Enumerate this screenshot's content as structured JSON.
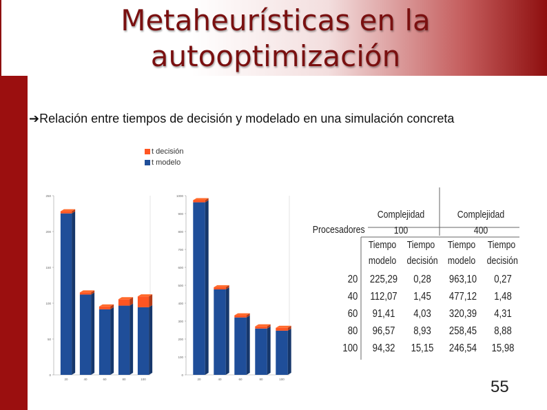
{
  "slide": {
    "title_line1": "Metaheurísticas en la",
    "title_line2": "autooptimización",
    "bullet": "Relación entre tiempos de decisión y modelado en una simulación concreta",
    "page_number": "55"
  },
  "legend": {
    "items": [
      {
        "label": "t decisión",
        "color": "#ff5522"
      },
      {
        "label": "t modelo",
        "color": "#1f4e99"
      }
    ]
  },
  "chart_data": [
    {
      "type": "bar",
      "stacked": true,
      "categories": [
        "20",
        "40",
        "60",
        "80",
        "100"
      ],
      "ylim": [
        0,
        250
      ],
      "series": [
        {
          "name": "t modelo",
          "values": [
            225.29,
            112.07,
            91.41,
            96.57,
            94.32
          ],
          "color": "#1f4e99"
        },
        {
          "name": "t decisión",
          "values": [
            0.28,
            1.45,
            4.03,
            8.93,
            15.15
          ],
          "color": "#ff5522"
        }
      ]
    },
    {
      "type": "bar",
      "stacked": true,
      "categories": [
        "20",
        "40",
        "60",
        "80",
        "100"
      ],
      "ylim": [
        0,
        1000
      ],
      "series": [
        {
          "name": "t modelo",
          "values": [
            963.1,
            477.12,
            320.39,
            258.45,
            246.54
          ],
          "color": "#1f4e99"
        },
        {
          "name": "t decisión",
          "values": [
            0.27,
            1.48,
            4.31,
            8.88,
            15.98
          ],
          "color": "#ff5522"
        }
      ]
    },
    {
      "type": "table",
      "headers": {
        "group1": "Complejidad 100",
        "group2": "Complejidad 400",
        "row_header": "Procesadores",
        "sub_a": [
          "Tiempo",
          "modelo"
        ],
        "sub_b": [
          "Tiempo",
          "decisión"
        ]
      },
      "rows": [
        [
          "20",
          "225,29",
          "0,28",
          "963,10",
          "0,27"
        ],
        [
          "40",
          "112,07",
          "1,45",
          "477,12",
          "1,48"
        ],
        [
          "60",
          "91,41",
          "4,03",
          "320,39",
          "4,31"
        ],
        [
          "80",
          "96,57",
          "8,93",
          "258,45",
          "8,88"
        ],
        [
          "100",
          "94,32",
          "15,15",
          "246,54",
          "15,98"
        ]
      ]
    }
  ]
}
